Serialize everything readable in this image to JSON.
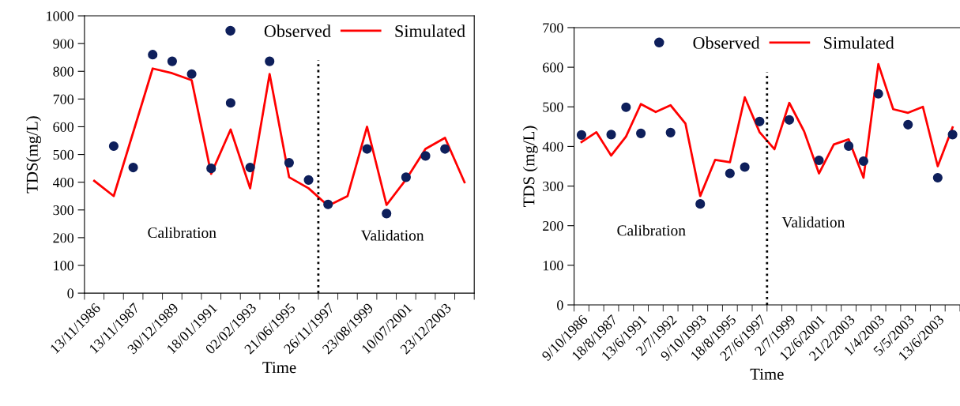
{
  "chart_data": [
    {
      "type": "line",
      "xlabel": "Time",
      "ylabel": "TDS(mg/L)",
      "categories": [
        "13/11/1986",
        null,
        "13/11/1987",
        null,
        "30/12/1989",
        null,
        "18/01/1991",
        null,
        "02/02/1993",
        null,
        "21/06/1995",
        null,
        "26/11/1997",
        null,
        "23/08/1999",
        null,
        "10/07/2001",
        null,
        "23/12/2003",
        null
      ],
      "series": [
        {
          "name": "Observed",
          "type": "scatter",
          "marker": "circle",
          "color": "#0e1f5b",
          "values": [
            null,
            530,
            453,
            860,
            836,
            790,
            450,
            686,
            453,
            836,
            470,
            408,
            320,
            null,
            520,
            287,
            418,
            495,
            520,
            null
          ]
        },
        {
          "name": "Simulated",
          "marker": "none",
          "line_style": "solid",
          "color": "#ff0000",
          "values": [
            405,
            350,
            580,
            810,
            793,
            768,
            430,
            590,
            378,
            790,
            418,
            378,
            315,
            350,
            600,
            318,
            410,
            520,
            560,
            400
          ]
        }
      ],
      "ylim": [
        0,
        1000
      ],
      "yticks": [
        0,
        100,
        200,
        300,
        400,
        500,
        600,
        700,
        800,
        900,
        1000
      ],
      "annotations": [
        "Calibration",
        "Validation"
      ],
      "legend": "top right",
      "grid": false
    },
    {
      "type": "line",
      "xlabel": "Time",
      "ylabel": "TDS (mg/L)",
      "categories": [
        "9/10/1986",
        null,
        "18/8/1987",
        null,
        "13/6/1991",
        null,
        "2/7/1992",
        null,
        "9/10/1993",
        null,
        "18/8/1995",
        null,
        "27/6/1997",
        null,
        "2/7/1999",
        null,
        "12/6/2001",
        null,
        "21/2/2003",
        null,
        "1/4/2003",
        null,
        "5/5/2003",
        null,
        "13/6/2003",
        null
      ],
      "series": [
        {
          "name": "Observed",
          "type": "scatter",
          "marker": "circle",
          "color": "#0e1f5b",
          "values": [
            429,
            null,
            430,
            499,
            433,
            null,
            435,
            null,
            255,
            null,
            332,
            348,
            463,
            null,
            467,
            null,
            365,
            null,
            401,
            363,
            533,
            null,
            455,
            null,
            321,
            430
          ]
        },
        {
          "name": "Simulated",
          "marker": "none",
          "line_style": "solid",
          "color": "#ff0000",
          "values": [
            411,
            436,
            377,
            425,
            507,
            487,
            504,
            458,
            275,
            366,
            360,
            524,
            436,
            393,
            510,
            438,
            332,
            405,
            418,
            321,
            608,
            494,
            485,
            500,
            350,
            448
          ]
        }
      ],
      "ylim": [
        0,
        700
      ],
      "yticks": [
        0,
        100,
        200,
        300,
        400,
        500,
        600,
        700
      ],
      "annotations": [
        "Calibration",
        "Validation"
      ],
      "legend": "top",
      "grid": false
    }
  ]
}
